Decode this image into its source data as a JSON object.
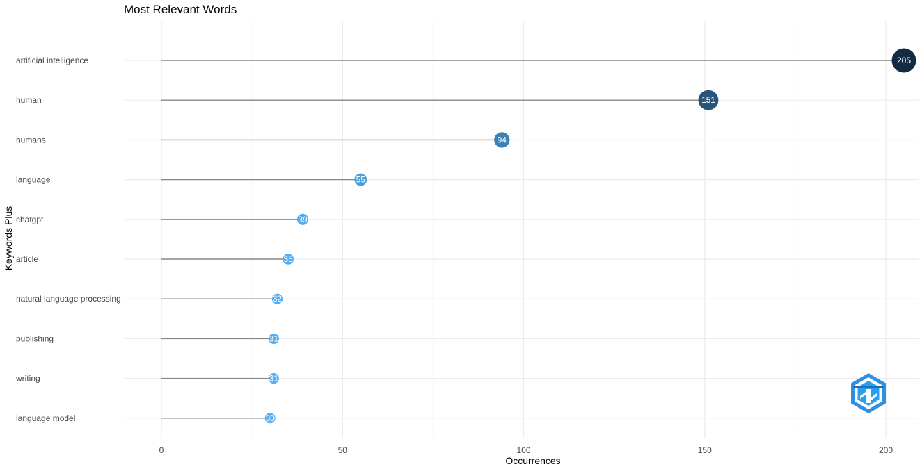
{
  "chart_data": {
    "type": "lollipop",
    "title": "Most Relevant Words",
    "xlabel": "Occurrences",
    "ylabel": "Keywords Plus",
    "xlim": [
      0,
      205
    ],
    "xticks": [
      0,
      50,
      100,
      150,
      200
    ],
    "grid": true,
    "legend": "none",
    "categories": [
      "artificial intelligence",
      "human",
      "humans",
      "language",
      "chatgpt",
      "article",
      "natural language processing",
      "publishing",
      "writing",
      "language model"
    ],
    "values": [
      205,
      151,
      94,
      55,
      39,
      35,
      32,
      31,
      31,
      30
    ],
    "color_scale": {
      "low": "#56b1f7",
      "high": "#132b43"
    }
  }
}
